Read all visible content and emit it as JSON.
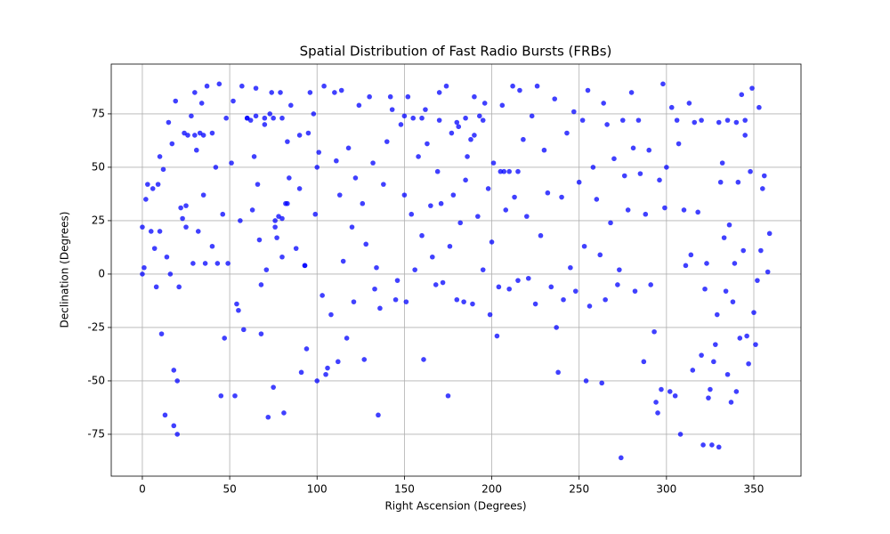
{
  "chart_data": {
    "type": "scatter",
    "title": "Spatial Distribution of Fast Radio Bursts (FRBs)",
    "x_label": "Right Ascension (Degrees)",
    "y_label": "Declination (Degrees)",
    "color": "#0000ff",
    "grid": true,
    "xlim": [
      -17.8,
      377
    ],
    "ylim": [
      -94.6,
      98.3
    ],
    "xticks": [
      0,
      50,
      100,
      150,
      200,
      250,
      300,
      350
    ],
    "yticks": [
      -75,
      -50,
      -25,
      0,
      25,
      50,
      75
    ],
    "x": [
      0,
      0,
      1,
      2,
      3,
      5,
      6,
      7,
      8,
      9,
      10,
      10,
      11,
      12,
      13,
      14,
      15,
      16,
      17,
      18,
      18,
      19,
      20,
      20,
      21,
      22,
      23,
      24,
      25,
      26,
      28,
      29,
      30,
      31,
      32,
      33,
      34,
      35,
      36,
      37,
      40,
      42,
      43,
      44,
      45,
      46,
      47,
      48,
      49,
      51,
      52,
      53,
      54,
      55,
      56,
      57,
      58,
      60,
      62,
      63,
      64,
      65,
      66,
      67,
      68,
      68,
      70,
      71,
      72,
      73,
      74,
      75,
      76,
      77,
      78,
      79,
      80,
      81,
      82,
      83,
      84,
      85,
      88,
      90,
      91,
      93,
      94,
      95,
      96,
      98,
      99,
      100,
      100,
      101,
      103,
      104,
      105,
      106,
      108,
      110,
      111,
      112,
      113,
      114,
      115,
      117,
      118,
      120,
      121,
      122,
      124,
      126,
      127,
      128,
      130,
      132,
      133,
      134,
      135,
      136,
      138,
      140,
      142,
      143,
      145,
      146,
      148,
      150,
      151,
      152,
      154,
      155,
      156,
      158,
      160,
      161,
      162,
      163,
      165,
      166,
      168,
      169,
      170,
      171,
      172,
      174,
      175,
      176,
      177,
      178,
      180,
      181,
      182,
      184,
      185,
      186,
      188,
      189,
      190,
      192,
      193,
      195,
      196,
      198,
      199,
      200,
      201,
      203,
      204,
      206,
      207,
      208,
      210,
      212,
      213,
      215,
      216,
      218,
      220,
      221,
      223,
      225,
      226,
      228,
      230,
      232,
      234,
      236,
      237,
      238,
      240,
      241,
      243,
      245,
      247,
      248,
      250,
      252,
      253,
      254,
      255,
      256,
      258,
      260,
      262,
      263,
      264,
      265,
      266,
      268,
      270,
      272,
      273,
      274,
      275,
      276,
      278,
      280,
      281,
      282,
      284,
      285,
      287,
      288,
      290,
      291,
      293,
      294,
      295,
      296,
      297,
      298,
      299,
      300,
      302,
      303,
      305,
      306,
      307,
      308,
      310,
      311,
      313,
      314,
      315,
      316,
      318,
      320,
      321,
      322,
      323,
      324,
      325,
      326,
      327,
      328,
      329,
      330,
      331,
      332,
      333,
      334,
      335,
      336,
      337,
      338,
      339,
      340,
      341,
      342,
      343,
      344,
      345,
      346,
      347,
      348,
      349,
      350,
      351,
      352,
      353,
      354,
      355,
      356,
      358,
      359,
      320,
      330,
      335,
      340,
      345,
      60,
      65,
      70,
      75,
      80,
      30,
      35,
      40,
      90,
      150,
      160,
      170,
      180,
      185,
      195,
      190,
      210,
      205,
      215,
      93,
      83,
      25,
      80,
      76
    ],
    "values": [
      0,
      22,
      3,
      35,
      42,
      20,
      40,
      12,
      -6,
      42,
      55,
      20,
      -28,
      49,
      -66,
      8,
      71,
      0,
      61,
      -45,
      -71,
      81,
      -75,
      -50,
      -6,
      31,
      26,
      66,
      22,
      65,
      74,
      5,
      85,
      58,
      20,
      66,
      80,
      37,
      5,
      88,
      13,
      50,
      5,
      89,
      -57,
      28,
      -30,
      73,
      5,
      52,
      81,
      -57,
      -14,
      -17,
      25,
      88,
      -26,
      73,
      72,
      30,
      55,
      87,
      42,
      16,
      -5,
      -28,
      70,
      2,
      -67,
      75,
      85,
      -53,
      22,
      17,
      27,
      85,
      8,
      -65,
      33,
      62,
      45,
      79,
      12,
      40,
      -46,
      4,
      -35,
      66,
      85,
      75,
      28,
      -50,
      50,
      57,
      -10,
      88,
      -47,
      -44,
      -19,
      85,
      53,
      -41,
      37,
      86,
      6,
      -30,
      59,
      22,
      -13,
      45,
      79,
      33,
      -40,
      14,
      83,
      52,
      -7,
      3,
      -66,
      -16,
      42,
      62,
      83,
      77,
      -12,
      -3,
      70,
      37,
      -13,
      83,
      28,
      73,
      2,
      55,
      18,
      -40,
      77,
      61,
      32,
      8,
      -5,
      48,
      85,
      33,
      -4,
      88,
      -57,
      13,
      66,
      37,
      -12,
      69,
      24,
      -13,
      44,
      55,
      63,
      -14,
      83,
      27,
      74,
      2,
      80,
      40,
      -19,
      15,
      52,
      -29,
      -6,
      79,
      48,
      30,
      -7,
      88,
      36,
      -3,
      86,
      63,
      27,
      -2,
      74,
      -14,
      88,
      18,
      58,
      38,
      -6,
      82,
      -25,
      -46,
      36,
      -12,
      66,
      3,
      76,
      -8,
      43,
      72,
      13,
      -50,
      86,
      -15,
      50,
      35,
      9,
      -51,
      80,
      -12,
      70,
      24,
      54,
      -5,
      2,
      -86,
      72,
      46,
      30,
      85,
      59,
      -8,
      72,
      47,
      -41,
      28,
      58,
      -5,
      -27,
      -60,
      -65,
      44,
      -54,
      89,
      31,
      50,
      -55,
      78,
      -57,
      72,
      61,
      -75,
      30,
      4,
      80,
      9,
      -45,
      71,
      29,
      -38,
      -80,
      -7,
      5,
      -58,
      -54,
      -80,
      -41,
      -33,
      -19,
      -81,
      43,
      52,
      17,
      -8,
      -47,
      23,
      -60,
      -13,
      5,
      -55,
      43,
      -30,
      84,
      11,
      65,
      -29,
      -42,
      48,
      87,
      -18,
      -33,
      -3,
      78,
      11,
      40,
      46,
      1,
      19,
      72,
      71,
      72,
      71,
      72,
      73,
      74,
      73,
      73,
      73,
      65,
      65,
      66,
      65,
      74,
      73,
      72,
      71,
      73,
      72,
      65,
      48,
      48,
      48,
      4,
      33,
      32,
      26,
      25
    ]
  }
}
